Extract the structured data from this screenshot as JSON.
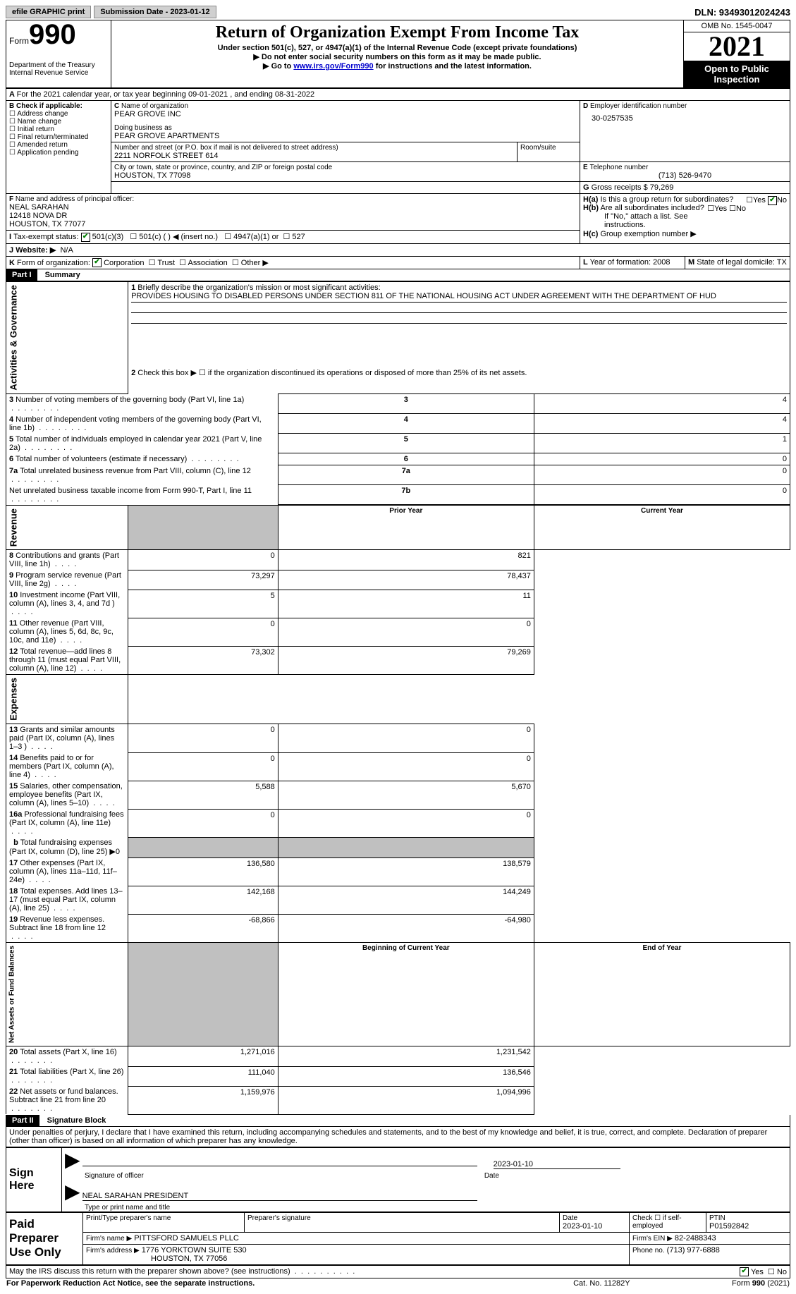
{
  "top": {
    "efile_label": "efile GRAPHIC print",
    "submission_label": "Submission Date - 2023-01-12",
    "dln": "DLN: 93493012024243"
  },
  "header": {
    "form_prefix": "Form",
    "form_number": "990",
    "dept": "Department of the Treasury\nInternal Revenue Service",
    "title": "Return of Organization Exempt From Income Tax",
    "subtitle1": "Under section 501(c), 527, or 4947(a)(1) of the Internal Revenue Code (except private foundations)",
    "subtitle2_prefix": "▶ Do not enter social security numbers on this form as it may be made public.",
    "goto_prefix": "▶ Go to ",
    "goto_link": "www.irs.gov/Form990",
    "goto_suffix": " for instructions and the latest information.",
    "omb": "OMB No. 1545-0047",
    "year": "2021",
    "open_inspection": "Open to Public Inspection"
  },
  "line_a": "For the 2021 calendar year, or tax year beginning 09-01-2021   , and ending 08-31-2022",
  "box_b": {
    "label": "Check if applicable:",
    "items": [
      "Address change",
      "Name change",
      "Initial return",
      "Final return/terminated",
      "Amended return",
      "Application pending"
    ]
  },
  "box_c": {
    "name_label": "Name of organization",
    "name": "PEAR GROVE INC",
    "dba_label": "Doing business as",
    "dba": "PEAR GROVE APARTMENTS",
    "street_label": "Number and street (or P.O. box if mail is not delivered to street address)",
    "street": "2211 NORFOLK STREET 614",
    "room_label": "Room/suite",
    "city_label": "City or town, state or province, country, and ZIP or foreign postal code",
    "city": "HOUSTON, TX  77098"
  },
  "box_d": {
    "label": "Employer identification number",
    "value": "30-0257535"
  },
  "box_e": {
    "label": "Telephone number",
    "value": "(713) 526-9470"
  },
  "box_g": {
    "label": "Gross receipts $",
    "value": "79,269"
  },
  "box_f": {
    "label": "Name and address of principal officer:",
    "name": "NEAL SARAHAN",
    "addr1": "12418 NOVA DR",
    "addr2": "HOUSTON, TX  77077"
  },
  "box_h": {
    "a_label": "Is this a group return for subordinates?",
    "b_label": "Are all subordinates included?",
    "note": "If \"No,\" attach a list. See instructions.",
    "c_label": "Group exemption number ▶"
  },
  "box_i": {
    "label": "Tax-exempt status:",
    "opt1": "501(c)(3)",
    "opt2": "501(c) (  ) ◀ (insert no.)",
    "opt3": "4947(a)(1) or",
    "opt4": "527"
  },
  "box_j": {
    "label": "Website: ▶",
    "value": "N/A"
  },
  "box_k": {
    "label": "Form of organization:",
    "corp": "Corporation",
    "trust": "Trust",
    "assoc": "Association",
    "other": "Other ▶"
  },
  "box_l": {
    "label": "Year of formation:",
    "value": "2008"
  },
  "box_m": {
    "label": "State of legal domicile:",
    "value": "TX"
  },
  "part1": {
    "header": "Part I",
    "title": "Summary",
    "line1_label": "Briefly describe the organization's mission or most significant activities:",
    "line1_text": "PROVIDES HOUSING TO DISABLED PERSONS UNDER SECTION 811 OF THE NATIONAL HOUSING ACT UNDER AGREEMENT WITH THE DEPARTMENT OF HUD",
    "line2": "Check this box ▶ ☐  if the organization discontinued its operations or disposed of more than 25% of its net assets.",
    "sidebar_activities": "Activities & Governance",
    "sidebar_revenue": "Revenue",
    "sidebar_expenses": "Expenses",
    "sidebar_net": "Net Assets or Fund Balances",
    "lines_top": [
      {
        "n": "3",
        "t": "Number of voting members of the governing body (Part VI, line 1a)",
        "box": "3",
        "v": "4"
      },
      {
        "n": "4",
        "t": "Number of independent voting members of the governing body (Part VI, line 1b)",
        "box": "4",
        "v": "4"
      },
      {
        "n": "5",
        "t": "Total number of individuals employed in calendar year 2021 (Part V, line 2a)",
        "box": "5",
        "v": "1"
      },
      {
        "n": "6",
        "t": "Total number of volunteers (estimate if necessary)",
        "box": "6",
        "v": "0"
      },
      {
        "n": "7a",
        "t": "Total unrelated business revenue from Part VIII, column (C), line 12",
        "box": "7a",
        "v": "0"
      },
      {
        "n": "",
        "t": "Net unrelated business taxable income from Form 990-T, Part I, line 11",
        "box": "7b",
        "v": "0"
      }
    ],
    "col_prior": "Prior Year",
    "col_current": "Current Year",
    "revenue_lines": [
      {
        "n": "8",
        "t": "Contributions and grants (Part VIII, line 1h)",
        "py": "0",
        "cy": "821"
      },
      {
        "n": "9",
        "t": "Program service revenue (Part VIII, line 2g)",
        "py": "73,297",
        "cy": "78,437"
      },
      {
        "n": "10",
        "t": "Investment income (Part VIII, column (A), lines 3, 4, and 7d )",
        "py": "5",
        "cy": "11"
      },
      {
        "n": "11",
        "t": "Other revenue (Part VIII, column (A), lines 5, 6d, 8c, 9c, 10c, and 11e)",
        "py": "0",
        "cy": "0"
      },
      {
        "n": "12",
        "t": "Total revenue—add lines 8 through 11 (must equal Part VIII, column (A), line 12)",
        "py": "73,302",
        "cy": "79,269"
      }
    ],
    "expense_lines": [
      {
        "n": "13",
        "t": "Grants and similar amounts paid (Part IX, column (A), lines 1–3 )",
        "py": "0",
        "cy": "0"
      },
      {
        "n": "14",
        "t": "Benefits paid to or for members (Part IX, column (A), line 4)",
        "py": "0",
        "cy": "0"
      },
      {
        "n": "15",
        "t": "Salaries, other compensation, employee benefits (Part IX, column (A), lines 5–10)",
        "py": "5,588",
        "cy": "5,670"
      },
      {
        "n": "16a",
        "t": "Professional fundraising fees (Part IX, column (A), line 11e)",
        "py": "0",
        "cy": "0"
      },
      {
        "n": "b",
        "t": "Total fundraising expenses (Part IX, column (D), line 25) ▶0",
        "py": "",
        "cy": "",
        "shaded": true
      },
      {
        "n": "17",
        "t": "Other expenses (Part IX, column (A), lines 11a–11d, 11f–24e)",
        "py": "136,580",
        "cy": "138,579"
      },
      {
        "n": "18",
        "t": "Total expenses. Add lines 13–17 (must equal Part IX, column (A), line 25)",
        "py": "142,168",
        "cy": "144,249"
      },
      {
        "n": "19",
        "t": "Revenue less expenses. Subtract line 18 from line 12",
        "py": "-68,866",
        "cy": "-64,980"
      }
    ],
    "col_begin": "Beginning of Current Year",
    "col_end": "End of Year",
    "net_lines": [
      {
        "n": "20",
        "t": "Total assets (Part X, line 16)",
        "py": "1,271,016",
        "cy": "1,231,542"
      },
      {
        "n": "21",
        "t": "Total liabilities (Part X, line 26)",
        "py": "111,040",
        "cy": "136,546"
      },
      {
        "n": "22",
        "t": "Net assets or fund balances. Subtract line 21 from line 20",
        "py": "1,159,976",
        "cy": "1,094,996"
      }
    ]
  },
  "part2": {
    "header": "Part II",
    "title": "Signature Block",
    "declaration": "Under penalties of perjury, I declare that I have examined this return, including accompanying schedules and statements, and to the best of my knowledge and belief, it is true, correct, and complete. Declaration of preparer (other than officer) is based on all information of which preparer has any knowledge.",
    "sign_here": "Sign Here",
    "sig_officer": "Signature of officer",
    "sig_date": "2023-01-10",
    "sig_date_label": "Date",
    "officer_name": "NEAL SARAHAN  PRESIDENT",
    "officer_name_label": "Type or print name and title",
    "paid": "Paid Preparer Use Only",
    "prep_name_label": "Print/Type preparer's name",
    "prep_sig_label": "Preparer's signature",
    "prep_date_label": "Date",
    "prep_date": "2023-01-10",
    "self_emp_label": "Check ☐ if self-employed",
    "ptin_label": "PTIN",
    "ptin": "P01592842",
    "firm_name_label": "Firm's name    ▶",
    "firm_name": "PITTSFORD SAMUELS PLLC",
    "firm_ein_label": "Firm's EIN ▶",
    "firm_ein": "82-2488343",
    "firm_addr_label": "Firm's address ▶",
    "firm_addr1": "1776 YORKTOWN SUITE 530",
    "firm_addr2": "HOUSTON, TX  77056",
    "firm_phone_label": "Phone no.",
    "firm_phone": "(713) 977-6888",
    "discuss": "May the IRS discuss this return with the preparer shown above? (see instructions)",
    "yes": "Yes",
    "no": "No"
  },
  "footer": {
    "paperwork": "For Paperwork Reduction Act Notice, see the separate instructions.",
    "cat": "Cat. No. 11282Y",
    "form": "Form 990 (2021)"
  }
}
